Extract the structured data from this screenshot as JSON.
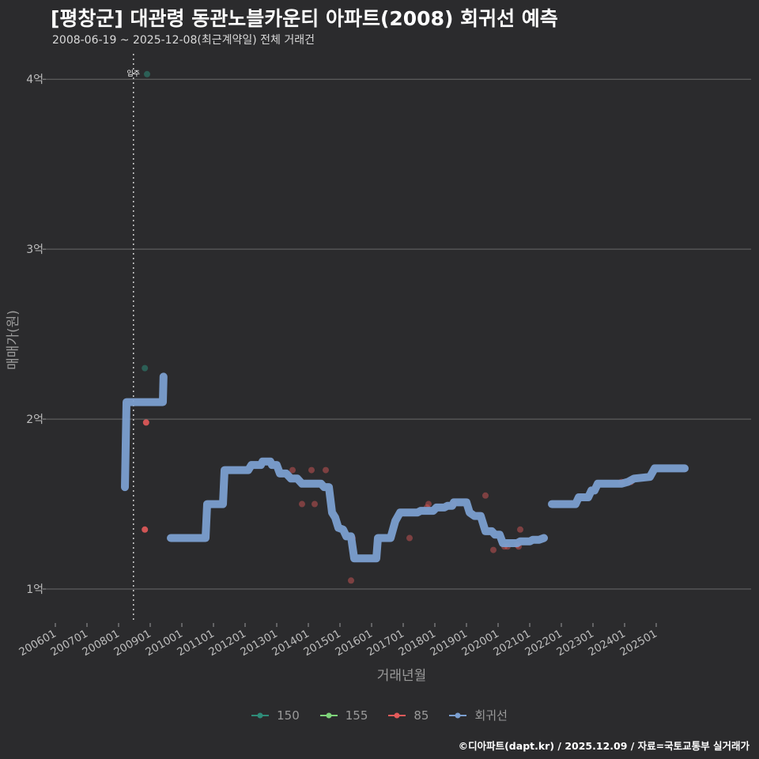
{
  "header": {
    "title": "[평창군] 대관령 동관노블카운티 아파트(2008) 회귀선 예측",
    "subtitle": "2008-06-19 ~ 2025-12-08(최근계약일) 전체 거래건"
  },
  "caption": "©디아파트(dapt.kr) / 2025.12.09 / 자료=국토교통부 실거래가",
  "colors": {
    "background": "#2b2b2d",
    "grid": "#6a6a6a",
    "s150": "#2e8b78",
    "s155": "#7ed37a",
    "s85": "#e35a5a",
    "regression": "#7b9fd0"
  },
  "chart_data": {
    "type": "scatter",
    "title": "[평창군] 대관령 동관노블카운티 아파트(2008) 회귀선 예측",
    "xlabel": "거래년월",
    "ylabel": "매매가(원)",
    "xlim": [
      2005.7,
      2028.0
    ],
    "ylim": [
      0.8,
      4.15
    ],
    "y_ticks": [
      {
        "value": 1,
        "label": "1억"
      },
      {
        "value": 2,
        "label": "2억"
      },
      {
        "value": 3,
        "label": "3억"
      },
      {
        "value": 4,
        "label": "4억"
      }
    ],
    "x_ticks": [
      {
        "value": 2006,
        "label": "200601"
      },
      {
        "value": 2007,
        "label": "200701"
      },
      {
        "value": 2008,
        "label": "200801"
      },
      {
        "value": 2009,
        "label": "200901"
      },
      {
        "value": 2010,
        "label": "201001"
      },
      {
        "value": 2011,
        "label": "201101"
      },
      {
        "value": 2012,
        "label": "201201"
      },
      {
        "value": 2013,
        "label": "201301"
      },
      {
        "value": 2014,
        "label": "201401"
      },
      {
        "value": 2015,
        "label": "201501"
      },
      {
        "value": 2016,
        "label": "201601"
      },
      {
        "value": 2017,
        "label": "201701"
      },
      {
        "value": 2018,
        "label": "201801"
      },
      {
        "value": 2019,
        "label": "201901"
      },
      {
        "value": 2020,
        "label": "202001"
      },
      {
        "value": 2021,
        "label": "202101"
      },
      {
        "value": 2022,
        "label": "202201"
      },
      {
        "value": 2023,
        "label": "202301"
      },
      {
        "value": 2024,
        "label": "202401"
      },
      {
        "value": 2025,
        "label": "202501"
      }
    ],
    "vline": {
      "x": 2008.47,
      "label": "입주"
    },
    "series": [
      {
        "name": "150",
        "color": "#2e8b78",
        "points": [
          [
            2008.9,
            4.03
          ],
          [
            2008.83,
            2.3
          ]
        ]
      },
      {
        "name": "155",
        "color": "#7ed37a",
        "points": []
      },
      {
        "name": "85",
        "color": "#e35a5a",
        "points": [
          [
            2008.87,
            1.98
          ],
          [
            2008.83,
            1.35
          ],
          [
            2013.5,
            1.7
          ],
          [
            2013.8,
            1.5
          ],
          [
            2014.1,
            1.7
          ],
          [
            2014.2,
            1.5
          ],
          [
            2014.55,
            1.7
          ],
          [
            2015.4,
            1.3
          ],
          [
            2015.35,
            1.05
          ],
          [
            2017.2,
            1.3
          ],
          [
            2017.75,
            1.48
          ],
          [
            2017.8,
            1.5
          ],
          [
            2018.6,
            1.5
          ],
          [
            2019.6,
            1.55
          ],
          [
            2019.85,
            1.23
          ],
          [
            2020.2,
            1.25
          ],
          [
            2020.3,
            1.25
          ],
          [
            2020.65,
            1.25
          ],
          [
            2020.7,
            1.35
          ],
          [
            2020.6,
            1.26
          ],
          [
            2023.9,
            1.63
          ],
          [
            2024.2,
            1.63
          ]
        ]
      }
    ],
    "regression": {
      "name": "회귀선",
      "segments": [
        [
          [
            2008.2,
            1.6
          ],
          [
            2008.25,
            2.1
          ],
          [
            2009.4,
            2.1
          ],
          [
            2009.42,
            2.25
          ]
        ],
        [
          [
            2009.65,
            1.3
          ],
          [
            2010.75,
            1.3
          ],
          [
            2010.8,
            1.5
          ],
          [
            2011.3,
            1.5
          ],
          [
            2011.35,
            1.7
          ],
          [
            2012.1,
            1.7
          ],
          [
            2012.2,
            1.73
          ],
          [
            2012.5,
            1.73
          ],
          [
            2012.55,
            1.75
          ],
          [
            2012.8,
            1.75
          ],
          [
            2012.85,
            1.73
          ],
          [
            2013.0,
            1.73
          ],
          [
            2013.1,
            1.68
          ],
          [
            2013.3,
            1.68
          ],
          [
            2013.45,
            1.65
          ],
          [
            2013.65,
            1.65
          ],
          [
            2013.8,
            1.62
          ],
          [
            2014.4,
            1.62
          ],
          [
            2014.5,
            1.6
          ],
          [
            2014.65,
            1.6
          ],
          [
            2014.75,
            1.45
          ],
          [
            2014.85,
            1.42
          ],
          [
            2014.95,
            1.36
          ],
          [
            2015.1,
            1.35
          ],
          [
            2015.2,
            1.31
          ],
          [
            2015.35,
            1.31
          ],
          [
            2015.45,
            1.18
          ],
          [
            2016.15,
            1.18
          ],
          [
            2016.2,
            1.3
          ],
          [
            2016.4,
            1.3
          ],
          [
            2016.6,
            1.3
          ],
          [
            2016.75,
            1.4
          ],
          [
            2016.9,
            1.45
          ],
          [
            2017.45,
            1.45
          ],
          [
            2017.55,
            1.46
          ],
          [
            2017.95,
            1.46
          ],
          [
            2018.05,
            1.48
          ],
          [
            2018.3,
            1.48
          ],
          [
            2018.4,
            1.49
          ],
          [
            2018.55,
            1.49
          ],
          [
            2018.6,
            1.51
          ],
          [
            2019.0,
            1.51
          ],
          [
            2019.1,
            1.45
          ],
          [
            2019.25,
            1.43
          ],
          [
            2019.45,
            1.43
          ],
          [
            2019.6,
            1.34
          ],
          [
            2019.8,
            1.34
          ],
          [
            2019.9,
            1.32
          ],
          [
            2020.05,
            1.32
          ],
          [
            2020.15,
            1.27
          ],
          [
            2020.6,
            1.27
          ],
          [
            2020.7,
            1.28
          ],
          [
            2021.0,
            1.28
          ],
          [
            2021.1,
            1.29
          ],
          [
            2021.3,
            1.29
          ],
          [
            2021.45,
            1.3
          ]
        ],
        [
          [
            2021.7,
            1.5
          ],
          [
            2022.45,
            1.5
          ],
          [
            2022.55,
            1.54
          ],
          [
            2022.85,
            1.54
          ],
          [
            2022.95,
            1.58
          ],
          [
            2023.05,
            1.58
          ],
          [
            2023.15,
            1.62
          ],
          [
            2023.9,
            1.62
          ],
          [
            2024.1,
            1.63
          ],
          [
            2024.3,
            1.65
          ],
          [
            2024.8,
            1.66
          ],
          [
            2024.95,
            1.71
          ],
          [
            2025.9,
            1.71
          ]
        ]
      ]
    },
    "legend": [
      {
        "label": "150",
        "color": "#2e8b78"
      },
      {
        "label": "155",
        "color": "#7ed37a"
      },
      {
        "label": "85",
        "color": "#e35a5a"
      },
      {
        "label": "회귀선",
        "color": "#7b9fd0"
      }
    ]
  }
}
